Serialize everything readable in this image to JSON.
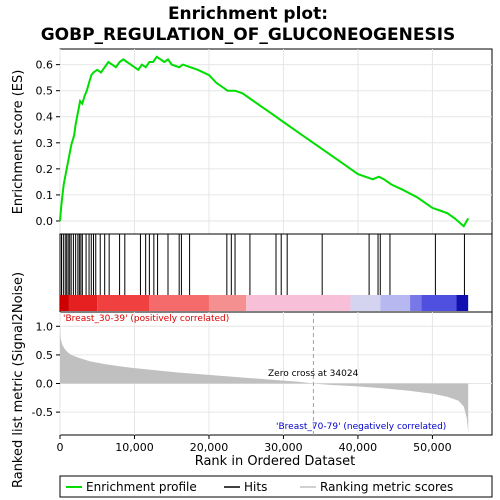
{
  "chart_data": {
    "type": "line",
    "title_line1": "Enrichment plot:",
    "title_line2": "GOBP_REGULATION_OF_GLUCONEOGENESIS",
    "es_ylabel": "Enrichment score (ES)",
    "metric_ylabel": "Ranked list metric (Signal2Noise)",
    "xlabel": "Rank in Ordered Dataset",
    "x_ticks": [
      "0",
      "10,000",
      "20,000",
      "30,000",
      "40,000",
      "50,000"
    ],
    "x_tick_values": [
      0,
      10000,
      20000,
      30000,
      40000,
      50000
    ],
    "es_ticks": [
      "0.0",
      "0.1",
      "0.2",
      "0.3",
      "0.4",
      "0.5",
      "0.6"
    ],
    "es_tick_values": [
      0.0,
      0.1,
      0.2,
      0.3,
      0.4,
      0.5,
      0.6
    ],
    "metric_ticks": [
      "-0.5",
      "0.0",
      "0.5",
      "1.0"
    ],
    "metric_tick_values": [
      -0.5,
      0.0,
      0.5,
      1.0
    ],
    "xlim": [
      0,
      58000
    ],
    "es_ylim": [
      -0.05,
      0.66
    ],
    "metric_ylim": [
      -0.9,
      1.25
    ],
    "positive_label": "'Breast_30-39' (positively correlated)",
    "negative_label": "'Breast_70-79' (negatively correlated)",
    "zero_cross_label": "Zero cross at 34024",
    "zero_cross": 34024,
    "dataset_size": 54800,
    "legend": [
      {
        "label": "Enrichment profile",
        "color": "#00dd00"
      },
      {
        "label": "Hits",
        "color": "#000000"
      },
      {
        "label": "Ranking metric scores",
        "color": "#c0c0c0"
      }
    ],
    "colors": {
      "enrichment": "#00dd00",
      "metric_fill": "#c0c0c0",
      "positive_text": "#dd0000",
      "negative_text": "#0000cc"
    },
    "es_profile": {
      "x": [
        0,
        150,
        300,
        500,
        700,
        900,
        1100,
        1300,
        1500,
        1700,
        1900,
        2100,
        2300,
        2500,
        2700,
        3000,
        3300,
        3600,
        3900,
        4200,
        4500,
        5000,
        5500,
        6000,
        6500,
        7000,
        7500,
        8000,
        8500,
        9000,
        10000,
        10500,
        11000,
        11500,
        12000,
        12500,
        13000,
        13500,
        14000,
        14500,
        15000,
        16000,
        16500,
        17500,
        18500,
        20000,
        21000,
        22000,
        22500,
        23000,
        23500,
        24500,
        25500,
        27000,
        28500,
        30000,
        32000,
        34000,
        36000,
        38000,
        40000,
        42000,
        42800,
        43500,
        44500,
        46000,
        48000,
        50000,
        51000,
        52000,
        53000,
        54200,
        54800
      ],
      "y": [
        0.0,
        0.05,
        0.09,
        0.14,
        0.17,
        0.2,
        0.23,
        0.26,
        0.29,
        0.31,
        0.33,
        0.37,
        0.4,
        0.43,
        0.46,
        0.45,
        0.48,
        0.5,
        0.53,
        0.56,
        0.57,
        0.58,
        0.57,
        0.59,
        0.61,
        0.6,
        0.59,
        0.61,
        0.62,
        0.61,
        0.59,
        0.58,
        0.6,
        0.59,
        0.61,
        0.61,
        0.63,
        0.62,
        0.61,
        0.62,
        0.6,
        0.59,
        0.6,
        0.59,
        0.58,
        0.56,
        0.53,
        0.51,
        0.5,
        0.5,
        0.5,
        0.49,
        0.47,
        0.44,
        0.41,
        0.38,
        0.34,
        0.3,
        0.26,
        0.22,
        0.18,
        0.16,
        0.17,
        0.16,
        0.14,
        0.12,
        0.09,
        0.05,
        0.04,
        0.03,
        0.01,
        -0.02,
        0.01
      ]
    },
    "hits": [
      200,
      450,
      700,
      900,
      1100,
      1300,
      1500,
      1800,
      2100,
      2400,
      2600,
      2800,
      3000,
      3500,
      3900,
      4200,
      4500,
      4800,
      5400,
      6000,
      6600,
      8000,
      8700,
      10800,
      11500,
      12000,
      12600,
      13100,
      14500,
      16000,
      16300,
      17400,
      22400,
      23000,
      23500,
      25500,
      29000,
      29700,
      30500,
      35200,
      41500,
      42700,
      43000,
      44300,
      50400,
      54300
    ],
    "metric": {
      "x": [
        0,
        100,
        300,
        600,
        1000,
        1500,
        2500,
        4000,
        6000,
        8000,
        10000,
        13000,
        16000,
        20000,
        24000,
        28000,
        32000,
        34024,
        36000,
        40000,
        44000,
        47000,
        50000,
        52000,
        53500,
        54200,
        54600,
        54800
      ],
      "y": [
        1.0,
        0.78,
        0.68,
        0.61,
        0.55,
        0.5,
        0.45,
        0.39,
        0.34,
        0.3,
        0.27,
        0.23,
        0.19,
        0.15,
        0.11,
        0.07,
        0.03,
        0.0,
        -0.02,
        -0.05,
        -0.09,
        -0.13,
        -0.18,
        -0.23,
        -0.3,
        -0.4,
        -0.6,
        -0.85
      ]
    },
    "heat_strips": [
      {
        "from": 0,
        "to": 1200,
        "color": "#cc0000"
      },
      {
        "from": 1200,
        "to": 5000,
        "color": "#e62020"
      },
      {
        "from": 5000,
        "to": 12000,
        "color": "#f04040"
      },
      {
        "from": 12000,
        "to": 20000,
        "color": "#f56a6a"
      },
      {
        "from": 20000,
        "to": 25000,
        "color": "#f59090"
      },
      {
        "from": 25000,
        "to": 39000,
        "color": "#f8c0d8"
      },
      {
        "from": 39000,
        "to": 43000,
        "color": "#d4d4f0"
      },
      {
        "from": 43000,
        "to": 47000,
        "color": "#b8b8f0"
      },
      {
        "from": 47000,
        "to": 48500,
        "color": "#7878e8"
      },
      {
        "from": 48500,
        "to": 53200,
        "color": "#5050e0"
      },
      {
        "from": 53200,
        "to": 54800,
        "color": "#1010b0"
      }
    ]
  }
}
